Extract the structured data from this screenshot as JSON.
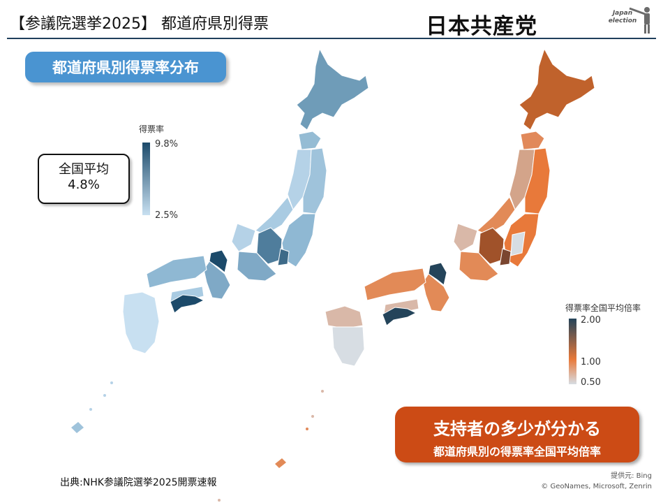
{
  "header": {
    "title": "【参議院選挙2025】 都道府県別得票",
    "party": "日本共産党",
    "logo_text_1": "Japan",
    "logo_text_2": "election"
  },
  "left_map": {
    "badge": "都道府県別得票率分布",
    "national_average_label": "全国平均",
    "national_average_value": "4.8%",
    "legend": {
      "title": "得票率",
      "max": "9.8%",
      "min": "2.5%"
    },
    "colors": {
      "dark": "#1c4a6a",
      "mid": "#6f9cb8",
      "light": "#c8e0f1"
    }
  },
  "right_map": {
    "badge_main": "支持者の多少が分かる",
    "badge_sub": "都道府県別の得票率全国平均倍率",
    "legend": {
      "title": "得票率全国平均倍率",
      "max": "2.00",
      "mid": "1.00",
      "min": "0.50"
    },
    "colors": {
      "dark": "#24445a",
      "mid": "#c0622c",
      "accent": "#e8793a",
      "light": "#d7dde3"
    }
  },
  "footer": {
    "source": "出典:NHK参議院選挙2025開票速報",
    "credit_1": "提供元: Bing",
    "credit_2": "© GeoNames, Microsoft, Zenrin"
  }
}
